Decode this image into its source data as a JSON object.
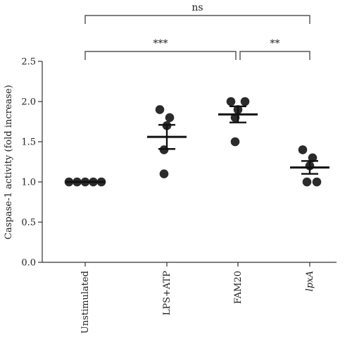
{
  "chart_data": {
    "type": "scatter",
    "ylabel": "Caspase-1 activity (fold increase)",
    "xlabel": "",
    "ylim": [
      0,
      2.5
    ],
    "yticks": [
      "0.0",
      "0.5",
      "1.0",
      "1.5",
      "2.0",
      "2.5"
    ],
    "grid": false,
    "categories": [
      "Unstimulated",
      "LPS+ATP",
      "FAM20",
      "lpxA"
    ],
    "italic_categories": [
      "lpxA"
    ],
    "groups": [
      {
        "category": "Unstimulated",
        "points": [
          1.0,
          1.0,
          1.0,
          1.0,
          1.0
        ],
        "mean": 1.0,
        "sem_low": 1.0,
        "sem_high": 1.0
      },
      {
        "category": "LPS+ATP",
        "points": [
          1.9,
          1.8,
          1.7,
          1.4,
          1.1
        ],
        "mean": 1.56,
        "sem_low": 1.41,
        "sem_high": 1.71
      },
      {
        "category": "FAM20",
        "points": [
          2.0,
          2.0,
          1.9,
          1.8,
          1.5
        ],
        "mean": 1.84,
        "sem_low": 1.74,
        "sem_high": 1.94
      },
      {
        "category": "lpxA",
        "points": [
          1.4,
          1.3,
          1.2,
          1.0,
          1.0
        ],
        "mean": 1.18,
        "sem_low": 1.1,
        "sem_high": 1.26
      }
    ],
    "annotations": [
      {
        "from": "Unstimulated",
        "to": "lpxA",
        "label": "ns"
      },
      {
        "from": "Unstimulated",
        "to": "FAM20",
        "label": "***"
      },
      {
        "from": "FAM20",
        "to": "lpxA",
        "label": "**"
      }
    ],
    "colors": {
      "points": "#2b2b2b",
      "lines": "#111111",
      "axis": "#333333"
    }
  }
}
